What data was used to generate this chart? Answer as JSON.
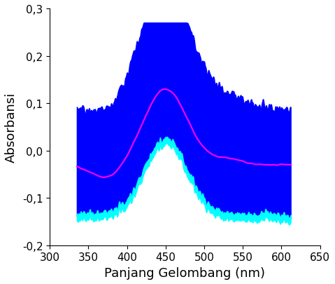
{
  "xlabel": "Panjang Gelombang (nm)",
  "ylabel": "Absorbansi",
  "xlim": [
    300,
    650
  ],
  "ylim": [
    -0.2,
    0.3
  ],
  "xticks": [
    300,
    350,
    400,
    450,
    500,
    550,
    600,
    650
  ],
  "yticks": [
    -0.2,
    -0.1,
    0.0,
    0.1,
    0.2,
    0.3
  ],
  "bg_color": "#ffffff",
  "fill_color_blue": "#0000ff",
  "fill_color_cyan": "#00ffff",
  "line_color": "#ff00ff",
  "line_width": 1.5,
  "xlabel_fontsize": 13,
  "ylabel_fontsize": 13,
  "tick_fontsize": 11
}
